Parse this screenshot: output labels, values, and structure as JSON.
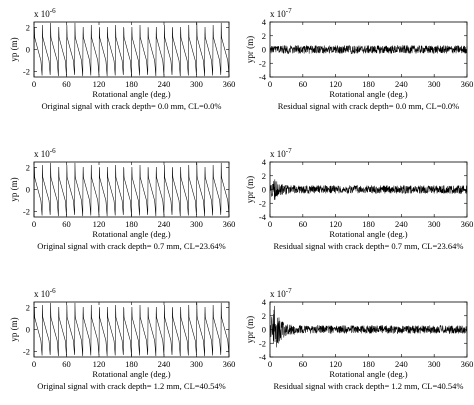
{
  "chart_data": [
    {
      "type": "line",
      "signal": "periodic",
      "scale_text": "x 10",
      "scale_exp": "-6",
      "ylabel": "yp (m)",
      "xlabel": "Rotational angle (deg.)",
      "caption": "Original signal with crack depth= 0.0 mm, CL=0.0%",
      "xlim": [
        0,
        360
      ],
      "ylim": [
        -2,
        2
      ],
      "xticks": [
        "0",
        "60",
        "120",
        "180",
        "240",
        "300",
        "360"
      ],
      "yticks": [
        "2",
        "0",
        "-2"
      ],
      "ytick_values": [
        2,
        0,
        -2
      ],
      "periods": 24,
      "amplitude_max": 2.4,
      "amplitude_min": -2.4,
      "series": [
        {
          "values_sampled": [
            -1.5,
            2.4,
            1.1,
            0.5,
            -0.2,
            -1.0,
            -2.4,
            -1.5,
            2.4,
            1.1,
            0.5,
            -0.2,
            -1.0,
            -2.4
          ]
        }
      ]
    },
    {
      "type": "line",
      "signal": "noise",
      "scale_text": "x 10",
      "scale_exp": "-7",
      "ylabel": "ypr (m)",
      "xlabel": "Rotational angle (deg.)",
      "caption": "Residual signal with crack depth= 0.0 mm, CL=0.0%",
      "xlim": [
        0,
        360
      ],
      "ylim": [
        -4,
        4
      ],
      "xticks": [
        "0",
        "60",
        "120",
        "180",
        "240",
        "300",
        "360"
      ],
      "yticks": [
        "4",
        "2",
        "0",
        "-2",
        "-4"
      ],
      "ytick_values": [
        4,
        2,
        0,
        -2,
        -4
      ],
      "noise_amplitude": 0.6,
      "burst_amplitude": 0.0,
      "series": [
        {
          "values_sampled": [
            0.3,
            -0.4,
            0.5,
            -0.2,
            0.4,
            -0.5,
            0.2,
            -0.3,
            0.5,
            -0.4
          ]
        }
      ]
    },
    {
      "type": "line",
      "signal": "periodic",
      "scale_text": "x 10",
      "scale_exp": "-6",
      "ylabel": "yp (m)",
      "xlabel": "Rotational angle (deg.)",
      "caption": "Original signal with crack depth= 0.7 mm, CL=23.64%",
      "xlim": [
        0,
        360
      ],
      "ylim": [
        -2,
        2
      ],
      "xticks": [
        "0",
        "60",
        "120",
        "180",
        "240",
        "300",
        "360"
      ],
      "yticks": [
        "2",
        "0",
        "-2"
      ],
      "ytick_values": [
        2,
        0,
        -2
      ],
      "periods": 24,
      "amplitude_max": 2.4,
      "amplitude_min": -2.4,
      "series": [
        {
          "values_sampled": [
            -1.5,
            2.4,
            1.1,
            0.5,
            -0.2,
            -1.0,
            -2.4,
            -1.5,
            2.4,
            1.1,
            0.5,
            -0.2,
            -1.0,
            -2.4
          ]
        }
      ]
    },
    {
      "type": "line",
      "signal": "noise",
      "scale_text": "x 10",
      "scale_exp": "-7",
      "ylabel": "ypr (m)",
      "xlabel": "Rotational angle (deg.)",
      "caption": "Residual signal with crack depth= 0.7 mm, CL=23.64%",
      "xlim": [
        0,
        360
      ],
      "ylim": [
        -4,
        4
      ],
      "xticks": [
        "0",
        "60",
        "120",
        "180",
        "240",
        "300",
        "360"
      ],
      "yticks": [
        "4",
        "2",
        "0",
        "-2",
        "-4"
      ],
      "ytick_values": [
        4,
        2,
        0,
        -2,
        -4
      ],
      "noise_amplitude": 0.6,
      "burst_amplitude": 1.1,
      "series": [
        {
          "values_sampled": [
            1.0,
            -1.1,
            0.8,
            -0.6,
            0.4,
            -0.5,
            0.3,
            -0.4,
            0.5,
            -0.3
          ]
        }
      ]
    },
    {
      "type": "line",
      "signal": "periodic",
      "scale_text": "x 10",
      "scale_exp": "-6",
      "ylabel": "yp (m)",
      "xlabel": "Rotational angle (deg.)",
      "caption": "Original signal with crack depth= 1.2 mm, CL=40.54%",
      "xlim": [
        0,
        360
      ],
      "ylim": [
        -2,
        2
      ],
      "xticks": [
        "0",
        "60",
        "120",
        "180",
        "240",
        "300",
        "360"
      ],
      "yticks": [
        "2",
        "0",
        "-2"
      ],
      "ytick_values": [
        2,
        0,
        -2
      ],
      "periods": 24,
      "amplitude_max": 2.4,
      "amplitude_min": -2.4,
      "series": [
        {
          "values_sampled": [
            -1.5,
            2.4,
            1.1,
            0.5,
            -0.2,
            -1.0,
            -2.4,
            -1.5,
            2.4,
            1.1,
            0.5,
            -0.2,
            -1.0,
            -2.4
          ]
        }
      ]
    },
    {
      "type": "line",
      "signal": "noise",
      "scale_text": "x 10",
      "scale_exp": "-7",
      "ylabel": "ypr (m)",
      "xlabel": "Rotational angle (deg.)",
      "caption": "Residual signal with crack depth= 1.2 mm, CL=40.54%",
      "xlim": [
        0,
        360
      ],
      "ylim": [
        -4,
        4
      ],
      "xticks": [
        "0",
        "60",
        "120",
        "180",
        "240",
        "300",
        "360"
      ],
      "yticks": [
        "4",
        "2",
        "0",
        "-2",
        "-4"
      ],
      "ytick_values": [
        4,
        2,
        0,
        -2,
        -4
      ],
      "noise_amplitude": 0.6,
      "burst_amplitude": 3.2,
      "series": [
        {
          "values_sampled": [
            3.0,
            -3.2,
            2.0,
            -1.5,
            0.8,
            -0.6,
            0.4,
            -0.5,
            0.5,
            -0.4
          ]
        }
      ]
    }
  ]
}
